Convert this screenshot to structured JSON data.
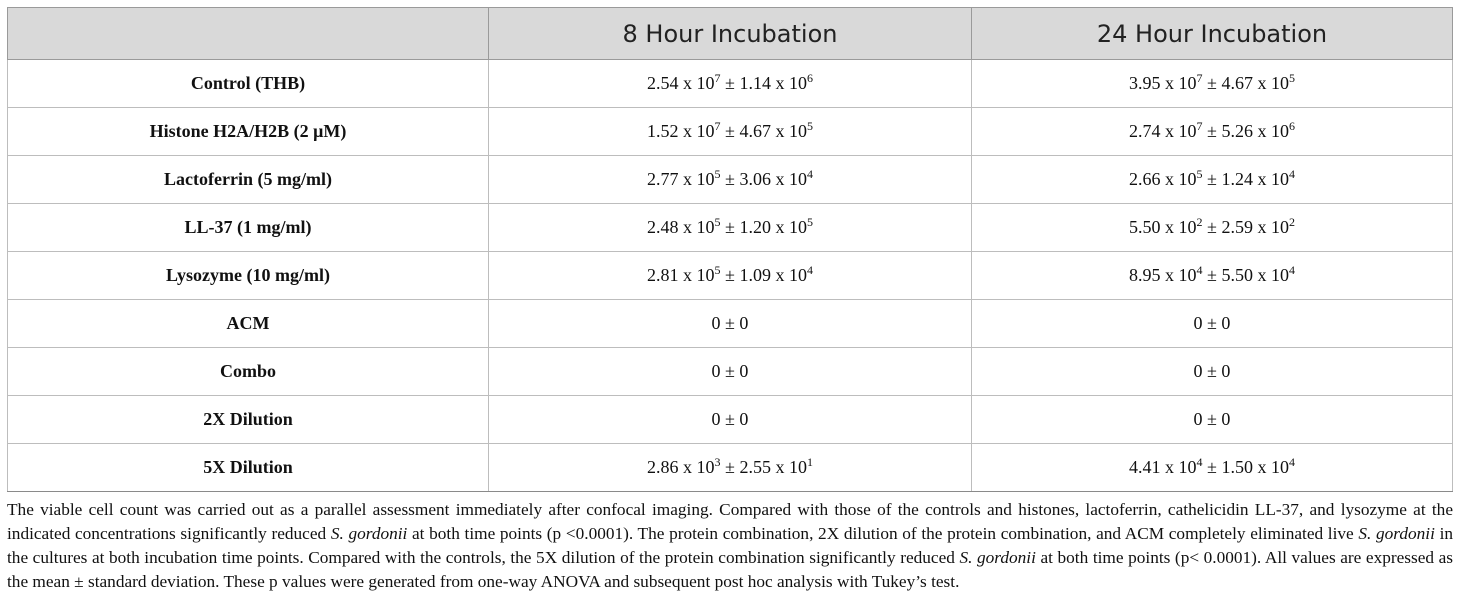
{
  "table": {
    "headers": [
      "",
      "8 Hour Incubation",
      "24 Hour Incubation"
    ],
    "rows": [
      {
        "label": "Control (THB)",
        "h8": {
          "m": "2.54",
          "me": "7",
          "s": "1.14",
          "se": "6"
        },
        "h24": {
          "m": "3.95",
          "me": "7",
          "s": "4.67",
          "se": "5"
        }
      },
      {
        "label": "Histone H2A/H2B (2 μM)",
        "h8": {
          "m": "1.52",
          "me": "7",
          "s": "4.67",
          "se": "5"
        },
        "h24": {
          "m": "2.74",
          "me": "7",
          "s": "5.26",
          "se": "6"
        }
      },
      {
        "label": "Lactoferrin (5 mg/ml)",
        "h8": {
          "m": "2.77",
          "me": "5",
          "s": "3.06",
          "se": "4"
        },
        "h24": {
          "m": "2.66",
          "me": "5",
          "s": "1.24",
          "se": "4"
        }
      },
      {
        "label": "LL-37 (1 mg/ml)",
        "h8": {
          "m": "2.48",
          "me": "5",
          "s": "1.20",
          "se": "5"
        },
        "h24": {
          "m": "5.50",
          "me": "2",
          "s": "2.59",
          "se": "2"
        }
      },
      {
        "label": "Lysozyme (10 mg/ml)",
        "h8": {
          "m": "2.81",
          "me": "5",
          "s": "1.09",
          "se": "4"
        },
        "h24": {
          "m": "8.95",
          "me": "4",
          "s": "5.50",
          "se": "4"
        }
      },
      {
        "label": "ACM",
        "h8_plain": "0 ± 0",
        "h24_plain": "0 ± 0"
      },
      {
        "label": "Combo",
        "h8_plain": "0 ± 0",
        "h24_plain": "0 ± 0"
      },
      {
        "label": "2X Dilution",
        "h8_plain": "0 ± 0",
        "h24_plain": "0 ± 0"
      },
      {
        "label": "5X Dilution",
        "h8": {
          "m": "2.86",
          "me": "3",
          "s": "2.55",
          "se": "1"
        },
        "h24": {
          "m": "4.41",
          "me": "4",
          "s": "1.50",
          "se": "4"
        }
      }
    ],
    "sci_notation": {
      "times": " x 10",
      "pm": " ± "
    }
  },
  "footnote": {
    "p1": "The viable cell count was carried out as a parallel assessment immediately after confocal imaging. Compared with those of the controls and histones, lactoferrin, cathelicidin LL-37, and lysozyme at the indicated concentrations significantly reduced ",
    "organism": "S. gordonii",
    "p2": " at both time points (p <0.0001). The protein combination, 2X dilution of the protein combination, and ACM completely eliminated live ",
    "p3": " in the cultures at both incubation time points. Compared with the controls, the 5X dilution of the protein combination significantly reduced ",
    "p4": " at both time points (p< 0.0001). All values are expressed as the mean ± standard deviation. These p values were generated from one-way ANOVA and subsequent post hoc analysis with Tukey’s test."
  },
  "colors": {
    "header_bg": "#d9d9d9",
    "border": "#bdbdbd",
    "text": "#111111"
  }
}
